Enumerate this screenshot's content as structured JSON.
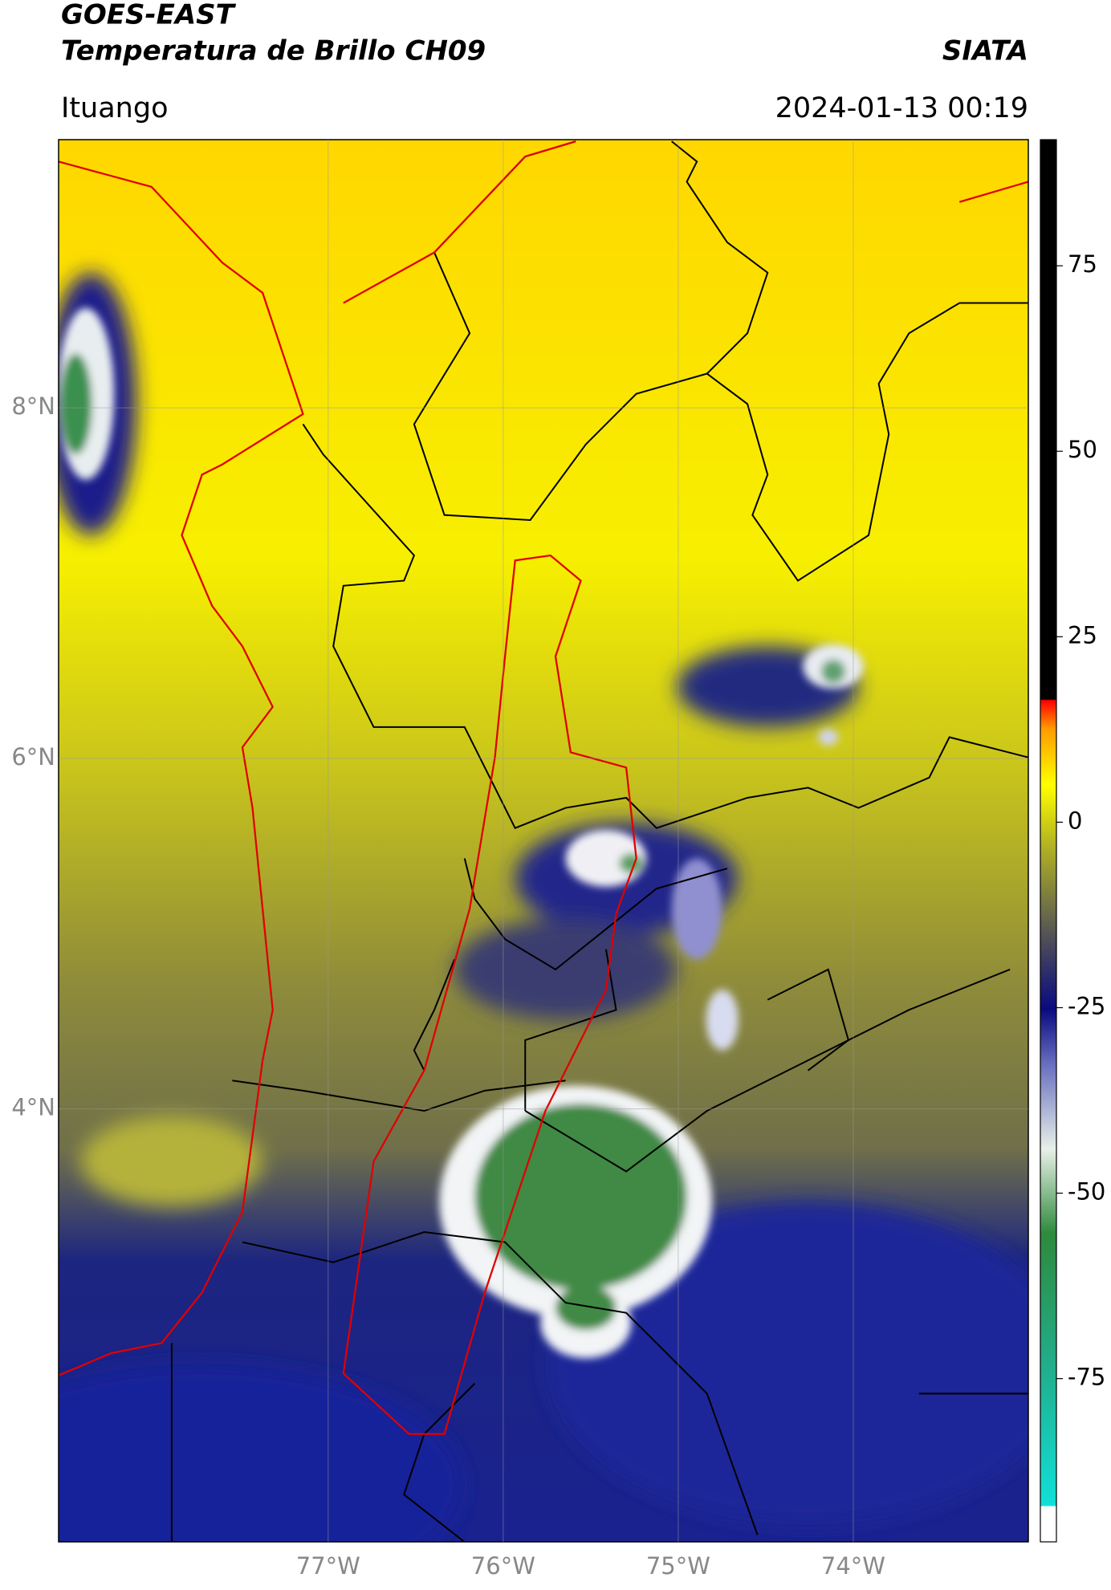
{
  "header": {
    "title": "GOES-EAST",
    "subtitle": "Temperatura de Brillo CH09",
    "source": "SIATA",
    "location": "Ituango",
    "datetime": "2024-01-13 00:19"
  },
  "map": {
    "xlim": [
      -78.54,
      -73.0
    ],
    "ylim": [
      1.53,
      9.53
    ],
    "xticks": [
      {
        "value": -77,
        "label": "77°W"
      },
      {
        "value": -76,
        "label": "76°W"
      },
      {
        "value": -75,
        "label": "75°W"
      },
      {
        "value": -74,
        "label": "74°W"
      }
    ],
    "yticks": [
      {
        "value": 4,
        "label": "4°N"
      },
      {
        "value": 6,
        "label": "6°N"
      },
      {
        "value": 8,
        "label": "8°N"
      }
    ]
  },
  "colorbar": {
    "lim": [
      -97,
      92
    ],
    "ticks": [
      -75,
      -50,
      -25,
      0,
      25,
      50,
      75
    ]
  }
}
